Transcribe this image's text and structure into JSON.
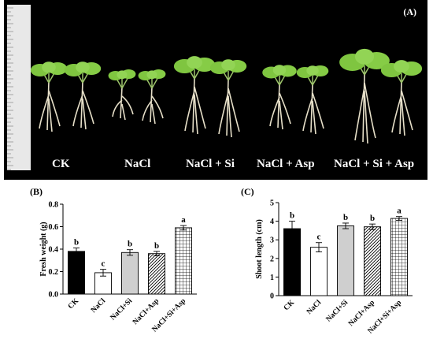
{
  "photo": {
    "panel_label": "(A)",
    "treatments": [
      "CK",
      "NaCl",
      "NaCl + Si",
      "NaCl + Asp",
      "NaCl + Si + Asp"
    ]
  },
  "chart_data": [
    {
      "panel_label": "(B)",
      "type": "bar",
      "categories": [
        "CK",
        "NaCl",
        "NaCl+Si",
        "NaCl+Asp",
        "NaCl+Si+Asp"
      ],
      "values": [
        0.38,
        0.19,
        0.37,
        0.36,
        0.59
      ],
      "errors": [
        0.03,
        0.03,
        0.025,
        0.02,
        0.02
      ],
      "letters": [
        "b",
        "c",
        "b",
        "b",
        "a"
      ],
      "ylabel": "Fresh weight (g)",
      "ylim": [
        0.0,
        0.8
      ],
      "yticks": [
        "0.0",
        "0.2",
        "0.4",
        "0.6",
        "0.8"
      ],
      "fills": [
        "solid-black",
        "white",
        "light-gray",
        "diagonal-hatch",
        "grid-hatch"
      ]
    },
    {
      "panel_label": "(C)",
      "type": "bar",
      "categories": [
        "CK",
        "NaCl",
        "NaCl+Si",
        "NaCl+Asp",
        "NaCl+Si+Asp"
      ],
      "values": [
        3.6,
        2.6,
        3.75,
        3.7,
        4.15
      ],
      "errors": [
        0.4,
        0.25,
        0.15,
        0.15,
        0.1
      ],
      "letters": [
        "b",
        "c",
        "b",
        "b",
        "a"
      ],
      "ylabel": "Shoot length (cm)",
      "ylim": [
        0,
        5
      ],
      "yticks": [
        "0",
        "1",
        "2",
        "3",
        "4",
        "5"
      ],
      "fills": [
        "solid-black",
        "white",
        "light-gray",
        "diagonal-hatch",
        "grid-hatch"
      ]
    }
  ]
}
